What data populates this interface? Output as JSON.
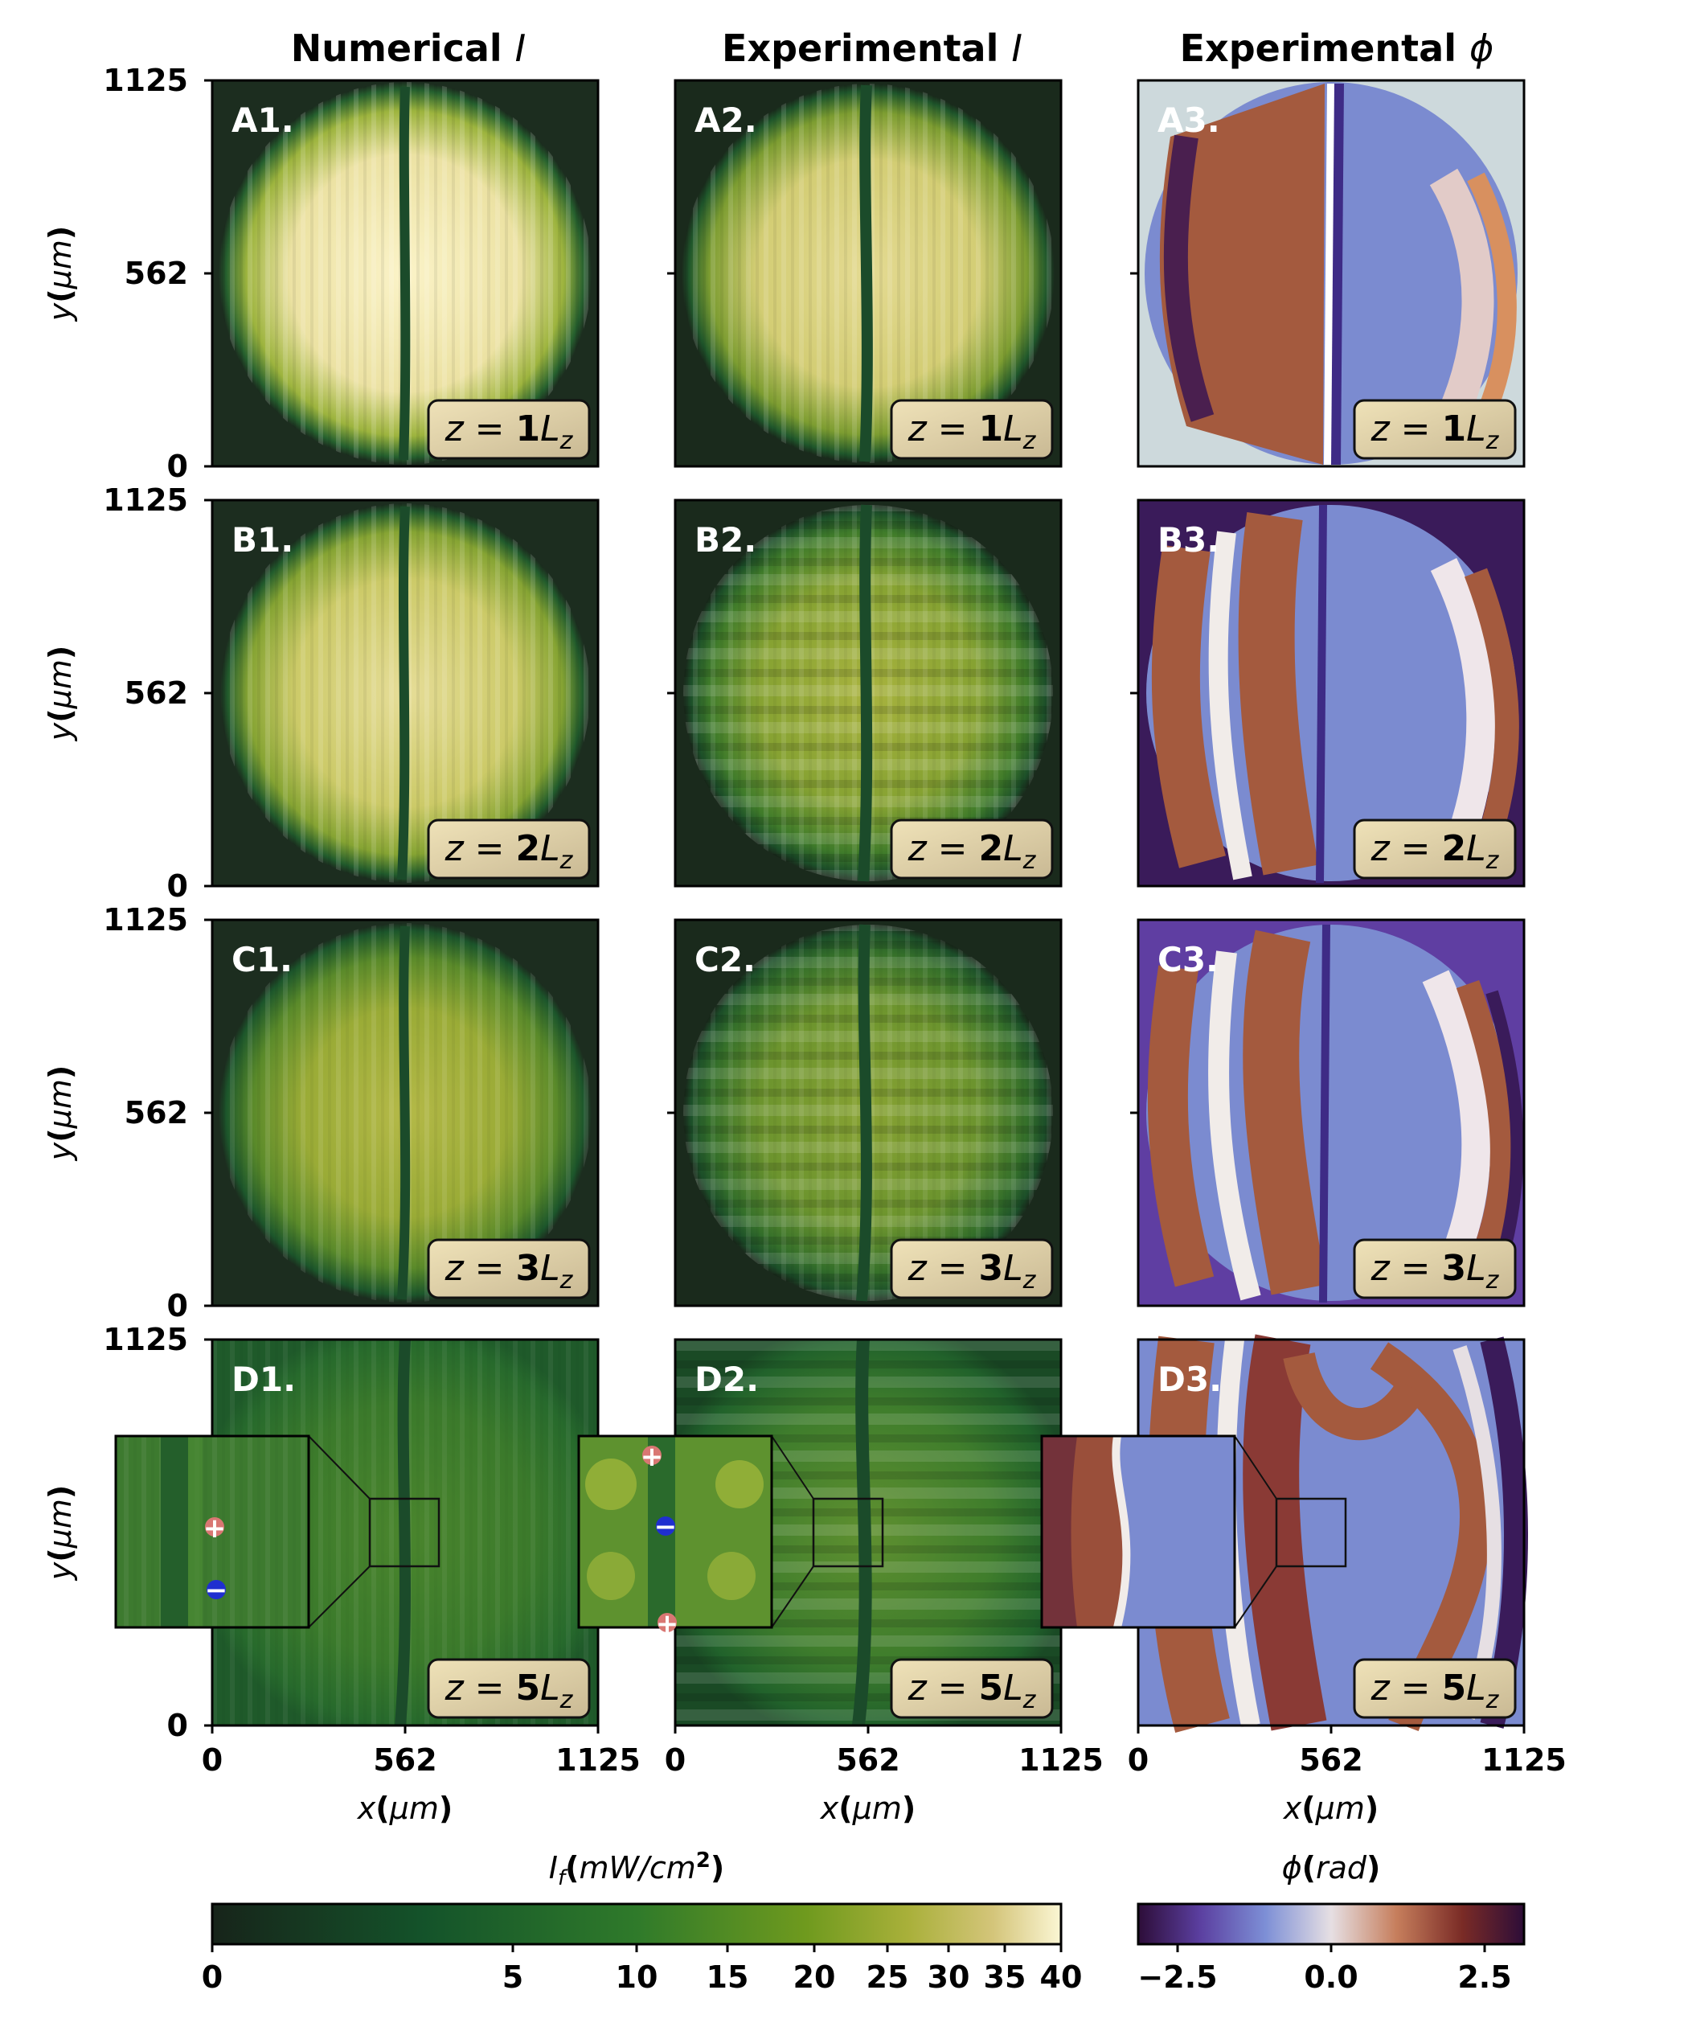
{
  "columns": [
    {
      "title": "Numerical ",
      "title_sym": "I"
    },
    {
      "title": "Experimental ",
      "title_sym": "I"
    },
    {
      "title": "Experimental ",
      "title_sym": "ϕ"
    }
  ],
  "rows": [
    {
      "panels": [
        "A1.",
        "A2.",
        "A3."
      ],
      "z_num": "1",
      "z_pre": "z",
      "z_eq": " = ",
      "z_suf": "L",
      "z_sub": "z"
    },
    {
      "panels": [
        "B1.",
        "B2.",
        "B3."
      ],
      "z_num": "2",
      "z_pre": "z",
      "z_eq": " = ",
      "z_suf": "L",
      "z_sub": "z"
    },
    {
      "panels": [
        "C1.",
        "C2.",
        "C3."
      ],
      "z_num": "3",
      "z_pre": "z",
      "z_eq": " = ",
      "z_suf": "L",
      "z_sub": "z"
    },
    {
      "panels": [
        "D1.",
        "D2.",
        "D3."
      ],
      "z_num": "5",
      "z_pre": "z",
      "z_eq": " = ",
      "z_suf": "L",
      "z_sub": "z"
    }
  ],
  "y_ticks": [
    "1125",
    "562",
    "0"
  ],
  "x_ticks": [
    "0",
    "562",
    "1125"
  ],
  "y_axis_label": {
    "var": "y",
    "unit_pre": "(",
    "unit": "μm",
    "unit_post": ")"
  },
  "x_axis_label": {
    "var": "x",
    "unit_pre": "(",
    "unit": "μm",
    "unit_post": ")"
  },
  "intensity_colorbar": {
    "label_var": "I",
    "label_sub": "f",
    "label_pre": "(",
    "label_unit": "mW/cm",
    "label_sup": "2",
    "label_post": ")",
    "ticks": [
      "0",
      "5",
      "10",
      "15",
      "20",
      "25",
      "30",
      "35",
      "40"
    ],
    "colors": [
      "#17241a",
      "#14532a",
      "#2f7a2a",
      "#6f9a1e",
      "#a9b03a",
      "#d4c57a",
      "#fbf6d4"
    ]
  },
  "phase_colorbar": {
    "label_var": "ϕ",
    "label_pre": "(",
    "label_unit": "rad",
    "label_post": ")",
    "ticks": [
      "−2.5",
      "0.0",
      "2.5"
    ],
    "colors": [
      "#2d0d38",
      "#5b3fa0",
      "#7d8fd6",
      "#e6dfe3",
      "#c67e5c",
      "#7a2b26",
      "#2d0d38"
    ]
  },
  "vortex_markers": {
    "plus": "+",
    "minus": "−"
  }
}
